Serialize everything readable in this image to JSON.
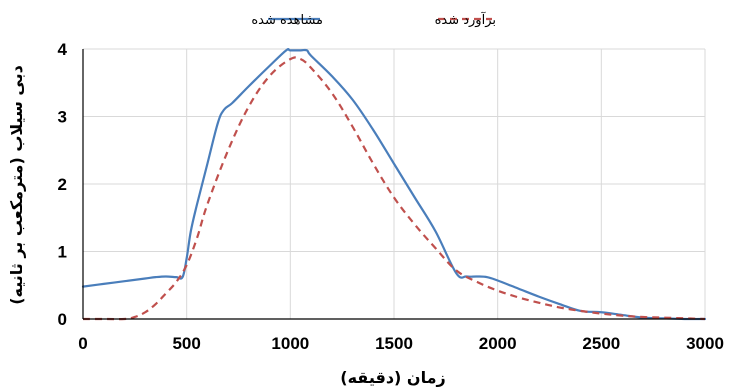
{
  "chart_data": {
    "type": "line",
    "xlabel": "زمان (دقیقه)",
    "ylabel": "دبی سیلاب (مترمکعب بر ثانیه)",
    "xlim": [
      0,
      3000
    ],
    "ylim": [
      0,
      4
    ],
    "xticks": [
      "0",
      "500",
      "1000",
      "1500",
      "2000",
      "2500",
      "3000"
    ],
    "xtick_values": [
      0,
      500,
      1000,
      1500,
      2000,
      2500,
      3000
    ],
    "yticks": [
      "0",
      "1",
      "2",
      "3",
      "4"
    ],
    "ytick_values": [
      0,
      1,
      2,
      3,
      4
    ],
    "grid": "both",
    "legend_position": "top",
    "series": [
      {
        "name": "مشاهده شده",
        "color": "#4a7ebb",
        "style": "solid",
        "x": [
          0,
          100,
          200,
          300,
          350,
          400,
          450,
          480,
          500,
          520,
          550,
          600,
          650,
          680,
          720,
          800,
          900,
          980,
          1000,
          1050,
          1080,
          1100,
          1200,
          1300,
          1400,
          1500,
          1600,
          1700,
          1800,
          1850,
          1900,
          1950,
          2000,
          2100,
          2200,
          2300,
          2400,
          2500,
          2600,
          2700,
          2800,
          2900,
          3000
        ],
        "y": [
          0.48,
          0.52,
          0.56,
          0.6,
          0.62,
          0.63,
          0.62,
          0.62,
          0.9,
          1.3,
          1.7,
          2.3,
          2.9,
          3.1,
          3.2,
          3.45,
          3.75,
          3.98,
          3.98,
          3.98,
          3.98,
          3.9,
          3.6,
          3.25,
          2.8,
          2.3,
          1.8,
          1.3,
          0.68,
          0.63,
          0.63,
          0.62,
          0.57,
          0.45,
          0.33,
          0.22,
          0.12,
          0.1,
          0.06,
          0.02,
          0.01,
          0.0,
          0.0
        ]
      },
      {
        "name": "برآورد شده",
        "color": "#c0504d",
        "style": "dashed",
        "x": [
          0,
          100,
          200,
          250,
          300,
          350,
          400,
          450,
          500,
          550,
          600,
          700,
          800,
          900,
          1000,
          1050,
          1100,
          1200,
          1300,
          1400,
          1500,
          1600,
          1700,
          1800,
          1900,
          2000,
          2100,
          2200,
          2300,
          2400,
          2500,
          2600,
          2700,
          2800,
          2900,
          3000
        ],
        "y": [
          0.0,
          0.0,
          0.0,
          0.03,
          0.1,
          0.22,
          0.38,
          0.55,
          0.8,
          1.2,
          1.7,
          2.5,
          3.15,
          3.6,
          3.85,
          3.85,
          3.72,
          3.35,
          2.85,
          2.3,
          1.8,
          1.4,
          1.05,
          0.72,
          0.55,
          0.42,
          0.32,
          0.24,
          0.17,
          0.12,
          0.08,
          0.05,
          0.03,
          0.02,
          0.01,
          0.0
        ]
      }
    ]
  }
}
